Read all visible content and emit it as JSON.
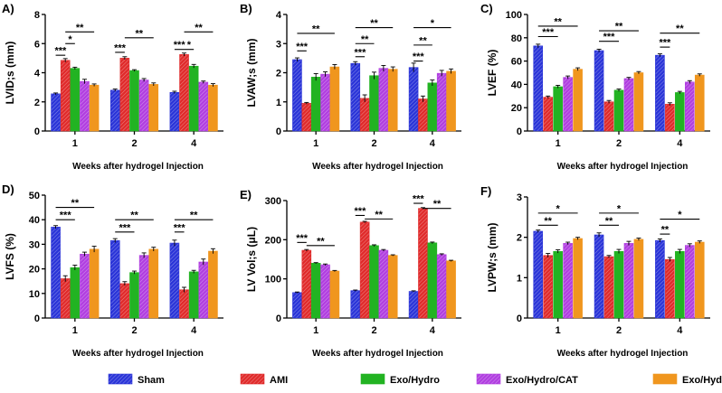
{
  "chart_data": {
    "series": [
      {
        "name": "Sham",
        "color": "#2b35d8",
        "pattern": "hatch"
      },
      {
        "name": "AMI",
        "color": "#e02b2b",
        "pattern": "hatch"
      },
      {
        "name": "Exo/Hydro",
        "color": "#22b322",
        "pattern": "solid"
      },
      {
        "name": "Exo/Hydro/CAT",
        "color": "#b13fe0",
        "pattern": "hatch"
      },
      {
        "name": "Exo/Hydro/AuNPs/CAT",
        "color": "#f0961e",
        "pattern": "solid"
      }
    ],
    "charts": [
      {
        "id": "A",
        "letter": "A)",
        "type": "bar",
        "ylabel": "LVID;s (mm)",
        "xlabel": "Weeks after hydrogel Injection",
        "categories": [
          "1",
          "2",
          "4"
        ],
        "ylim": [
          0,
          8
        ],
        "yticks": [
          "0",
          "2",
          "4",
          "6",
          "8"
        ],
        "values": [
          [
            2.55,
            4.85,
            4.3,
            3.4,
            3.15
          ],
          [
            2.8,
            5.0,
            4.15,
            3.5,
            3.2
          ],
          [
            2.65,
            5.25,
            4.45,
            3.35,
            3.15
          ]
        ],
        "errors": [
          [
            0.06,
            0.12,
            0.08,
            0.15,
            0.08
          ],
          [
            0.08,
            0.1,
            0.06,
            0.1,
            0.1
          ],
          [
            0.08,
            0.1,
            0.12,
            0.08,
            0.1
          ]
        ],
        "sig": [
          {
            "group": 0,
            "from": 0,
            "to": 1,
            "y": 5.2,
            "label": "***"
          },
          {
            "group": 0,
            "from": 1,
            "to": 2,
            "y": 6.0,
            "label": "*"
          },
          {
            "group": 0,
            "from": 1,
            "to": 4,
            "y": 6.8,
            "label": "**"
          },
          {
            "group": 1,
            "from": 0,
            "to": 1,
            "y": 5.4,
            "label": "***"
          },
          {
            "group": 1,
            "from": 1,
            "to": 4,
            "y": 6.4,
            "label": "**"
          },
          {
            "group": 2,
            "from": 0,
            "to": 1,
            "y": 5.6,
            "label": "***"
          },
          {
            "group": 2,
            "from": 1,
            "to": 2,
            "y": 5.6,
            "label": "*"
          },
          {
            "group": 2,
            "from": 1,
            "to": 4,
            "y": 6.8,
            "label": "**"
          }
        ]
      },
      {
        "id": "B",
        "letter": "B)",
        "type": "bar",
        "ylabel": "LVAW;s (mm)",
        "xlabel": "Weeks after hydrogel Injection",
        "categories": [
          "1",
          "2",
          "4"
        ],
        "ylim": [
          0,
          4
        ],
        "yticks": [
          "0",
          "1",
          "2",
          "3",
          "4"
        ],
        "values": [
          [
            2.45,
            0.95,
            1.85,
            1.95,
            2.2
          ],
          [
            2.32,
            1.12,
            1.9,
            2.15,
            2.12
          ],
          [
            2.18,
            1.1,
            1.65,
            1.98,
            2.05
          ]
        ],
        "errors": [
          [
            0.06,
            0.03,
            0.12,
            0.08,
            0.08
          ],
          [
            0.06,
            0.12,
            0.12,
            0.1,
            0.08
          ],
          [
            0.15,
            0.1,
            0.1,
            0.1,
            0.08
          ]
        ],
        "sig": [
          {
            "group": 0,
            "from": 0,
            "to": 1,
            "y": 2.75,
            "label": "***"
          },
          {
            "group": 0,
            "from": 0,
            "to": 4,
            "y": 3.35,
            "label": "**"
          },
          {
            "group": 1,
            "from": 0,
            "to": 1,
            "y": 2.55,
            "label": "***"
          },
          {
            "group": 1,
            "from": 0,
            "to": 2,
            "y": 3.0,
            "label": "**"
          },
          {
            "group": 1,
            "from": 0,
            "to": 4,
            "y": 3.55,
            "label": "**"
          },
          {
            "group": 2,
            "from": 0,
            "to": 1,
            "y": 2.4,
            "label": "***"
          },
          {
            "group": 2,
            "from": 0,
            "to": 2,
            "y": 2.95,
            "label": "**"
          },
          {
            "group": 2,
            "from": 0,
            "to": 4,
            "y": 3.55,
            "label": "*"
          }
        ]
      },
      {
        "id": "C",
        "letter": "C)",
        "type": "bar",
        "ylabel": "LVEF (%)",
        "xlabel": "Weeks after hydrogel Injection",
        "categories": [
          "1",
          "2",
          "4"
        ],
        "ylim": [
          0,
          100
        ],
        "yticks": [
          "0",
          "20",
          "40",
          "60",
          "80",
          "100"
        ],
        "values": [
          [
            73,
            29,
            38,
            46,
            53
          ],
          [
            69,
            25,
            35,
            45,
            50
          ],
          [
            65,
            23,
            33,
            42,
            48
          ]
        ],
        "errors": [
          [
            1.5,
            1.0,
            1.2,
            1.2,
            1.2
          ],
          [
            1.2,
            1.2,
            1.0,
            1.0,
            1.0
          ],
          [
            1.2,
            1.2,
            1.0,
            1.2,
            1.0
          ]
        ],
        "sig": [
          {
            "group": 0,
            "from": 0,
            "to": 2,
            "y": 81,
            "label": "***"
          },
          {
            "group": 0,
            "from": 0,
            "to": 4,
            "y": 90,
            "label": "**"
          },
          {
            "group": 1,
            "from": 0,
            "to": 2,
            "y": 77,
            "label": "***"
          },
          {
            "group": 1,
            "from": 0,
            "to": 4,
            "y": 86,
            "label": "**"
          },
          {
            "group": 2,
            "from": 0,
            "to": 1,
            "y": 72,
            "label": "***"
          },
          {
            "group": 2,
            "from": 0,
            "to": 4,
            "y": 84,
            "label": "**"
          }
        ]
      },
      {
        "id": "D",
        "letter": "D)",
        "type": "bar",
        "ylabel": "LVFS (%)",
        "xlabel": "Weeks after hydrogel Injection",
        "categories": [
          "1",
          "2",
          "4"
        ],
        "ylim": [
          0,
          50
        ],
        "yticks": [
          "0",
          "10",
          "20",
          "30",
          "40",
          "50"
        ],
        "values": [
          [
            37,
            16,
            20.5,
            26,
            28
          ],
          [
            31.5,
            14,
            18.5,
            25.5,
            28
          ],
          [
            30.5,
            11.5,
            18.8,
            22.8,
            27.2
          ]
        ],
        "errors": [
          [
            0.6,
            1.2,
            1.0,
            0.8,
            1.2
          ],
          [
            0.8,
            0.8,
            0.6,
            1.0,
            0.8
          ],
          [
            1.2,
            1.0,
            0.6,
            1.2,
            1.0
          ]
        ],
        "sig": [
          {
            "group": 0,
            "from": 0,
            "to": 2,
            "y": 40,
            "label": "***"
          },
          {
            "group": 0,
            "from": 0,
            "to": 4,
            "y": 45,
            "label": "**"
          },
          {
            "group": 1,
            "from": 0,
            "to": 2,
            "y": 35,
            "label": "***"
          },
          {
            "group": 1,
            "from": 0,
            "to": 4,
            "y": 40,
            "label": "**"
          },
          {
            "group": 2,
            "from": 0,
            "to": 1,
            "y": 35,
            "label": "***"
          },
          {
            "group": 2,
            "from": 0,
            "to": 4,
            "y": 40,
            "label": "**"
          }
        ]
      },
      {
        "id": "E",
        "letter": "E)",
        "type": "bar",
        "ylabel": "LV Vol;s (μL)",
        "xlabel": "Weeks after hydrogel Injection",
        "categories": [
          "1",
          "2",
          "4"
        ],
        "ylim": [
          0,
          300
        ],
        "yticks": [
          "0",
          "100",
          "200",
          "300"
        ],
        "values": [
          [
            65,
            173,
            140,
            136,
            120
          ],
          [
            70,
            245,
            185,
            173,
            160
          ],
          [
            68,
            280,
            192,
            162,
            146
          ]
        ],
        "errors": [
          [
            1.5,
            2.0,
            1.5,
            2.0,
            1.5
          ],
          [
            1.5,
            2.0,
            2.0,
            2.0,
            1.5
          ],
          [
            1.5,
            2.0,
            2.0,
            2.0,
            1.5
          ]
        ],
        "sig": [
          {
            "group": 0,
            "from": 0,
            "to": 1,
            "y": 193,
            "label": "***"
          },
          {
            "group": 0,
            "from": 1,
            "to": 4,
            "y": 185,
            "label": "**"
          },
          {
            "group": 1,
            "from": 0,
            "to": 1,
            "y": 262,
            "label": "***"
          },
          {
            "group": 1,
            "from": 1,
            "to": 4,
            "y": 253,
            "label": "**"
          },
          {
            "group": 2,
            "from": 0,
            "to": 1,
            "y": 293,
            "label": "***"
          },
          {
            "group": 2,
            "from": 1,
            "to": 4,
            "y": 280,
            "label": "**"
          }
        ]
      },
      {
        "id": "F",
        "letter": "F)",
        "type": "bar",
        "ylabel": "LVPW;s (mm)",
        "xlabel": "Weeks after hydrogel Injection",
        "categories": [
          "1",
          "2",
          "4"
        ],
        "ylim": [
          0,
          3
        ],
        "yticks": [
          "0",
          "1",
          "2",
          "3"
        ],
        "values": [
          [
            2.15,
            1.55,
            1.65,
            1.85,
            1.97
          ],
          [
            2.06,
            1.52,
            1.65,
            1.85,
            1.95
          ],
          [
            1.92,
            1.45,
            1.65,
            1.8,
            1.88
          ]
        ],
        "errors": [
          [
            0.03,
            0.05,
            0.04,
            0.03,
            0.03
          ],
          [
            0.05,
            0.03,
            0.05,
            0.05,
            0.03
          ],
          [
            0.04,
            0.05,
            0.05,
            0.04,
            0.03
          ]
        ],
        "sig": [
          {
            "group": 0,
            "from": 0,
            "to": 2,
            "y": 2.3,
            "label": "**"
          },
          {
            "group": 0,
            "from": 0,
            "to": 4,
            "y": 2.6,
            "label": "*"
          },
          {
            "group": 1,
            "from": 0,
            "to": 2,
            "y": 2.3,
            "label": "**"
          },
          {
            "group": 1,
            "from": 0,
            "to": 4,
            "y": 2.6,
            "label": "*"
          },
          {
            "group": 2,
            "from": 0,
            "to": 1,
            "y": 2.08,
            "label": "**"
          },
          {
            "group": 2,
            "from": 0,
            "to": 4,
            "y": 2.45,
            "label": "*"
          }
        ]
      }
    ]
  }
}
